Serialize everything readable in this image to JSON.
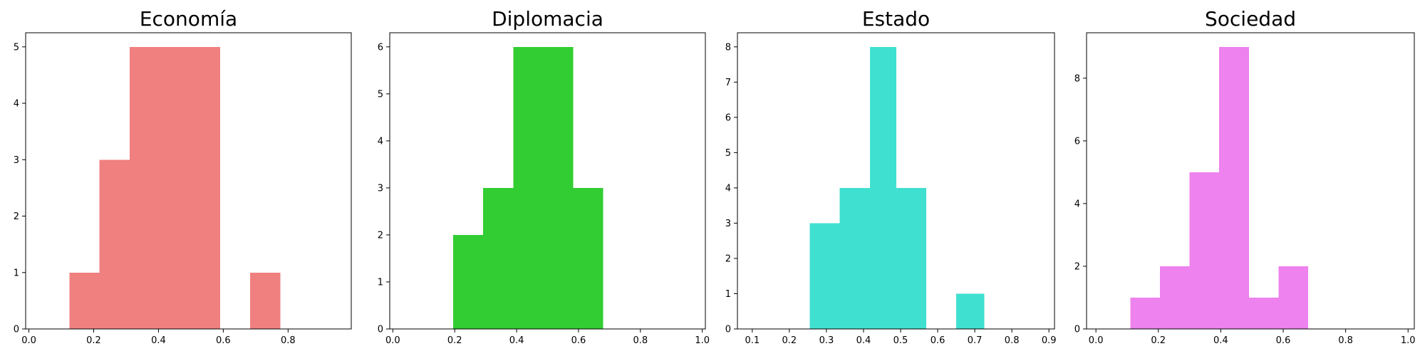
{
  "chart_data": [
    {
      "type": "bar",
      "subtype": "histogram",
      "title": "Economía",
      "color": "#F08080",
      "xlim": [
        -0.01,
        0.995
      ],
      "ylim": [
        0,
        5.25
      ],
      "xticks": [
        0.0,
        0.2,
        0.4,
        0.6,
        0.8
      ],
      "xtick_labels": [
        "0.0",
        "0.2",
        "0.4",
        "0.6",
        "0.8"
      ],
      "yticks": [
        0,
        1,
        2,
        3,
        4,
        5
      ],
      "ytick_labels": [
        "0",
        "1",
        "2",
        "3",
        "4",
        "5"
      ],
      "bins": [
        {
          "x0": 0.125,
          "x1": 0.218,
          "count": 1
        },
        {
          "x0": 0.218,
          "x1": 0.311,
          "count": 3
        },
        {
          "x0": 0.311,
          "x1": 0.404,
          "count": 5
        },
        {
          "x0": 0.404,
          "x1": 0.497,
          "count": 5
        },
        {
          "x0": 0.497,
          "x1": 0.59,
          "count": 5
        },
        {
          "x0": 0.59,
          "x1": 0.683,
          "count": 0
        },
        {
          "x0": 0.683,
          "x1": 0.776,
          "count": 1
        }
      ]
    },
    {
      "type": "bar",
      "subtype": "histogram",
      "title": "Diplomacia",
      "color": "#32CD32",
      "xlim": [
        -0.01,
        1.01
      ],
      "ylim": [
        0,
        6.3
      ],
      "xticks": [
        0.0,
        0.2,
        0.4,
        0.6,
        0.8,
        1.0
      ],
      "xtick_labels": [
        "0.0",
        "0.2",
        "0.4",
        "0.6",
        "0.8",
        "1.0"
      ],
      "yticks": [
        0,
        1,
        2,
        3,
        4,
        5,
        6
      ],
      "ytick_labels": [
        "0",
        "1",
        "2",
        "3",
        "4",
        "5",
        "6"
      ],
      "bins": [
        {
          "x0": 0.195,
          "x1": 0.292,
          "count": 2
        },
        {
          "x0": 0.292,
          "x1": 0.389,
          "count": 3
        },
        {
          "x0": 0.389,
          "x1": 0.486,
          "count": 6
        },
        {
          "x0": 0.486,
          "x1": 0.583,
          "count": 6
        },
        {
          "x0": 0.583,
          "x1": 0.68,
          "count": 3
        }
      ]
    },
    {
      "type": "bar",
      "subtype": "histogram",
      "title": "Estado",
      "color": "#40E0D0",
      "xlim": [
        0.06,
        0.915
      ],
      "ylim": [
        0,
        8.4
      ],
      "xticks": [
        0.1,
        0.2,
        0.3,
        0.4,
        0.5,
        0.6,
        0.7,
        0.8,
        0.9
      ],
      "xtick_labels": [
        "0.1",
        "0.2",
        "0.3",
        "0.4",
        "0.5",
        "0.6",
        "0.7",
        "0.8",
        "0.9"
      ],
      "yticks": [
        0,
        1,
        2,
        3,
        4,
        5,
        6,
        7,
        8
      ],
      "ytick_labels": [
        "0",
        "1",
        "2",
        "3",
        "4",
        "5",
        "6",
        "7",
        "8"
      ],
      "bins": [
        {
          "x0": 0.255,
          "x1": 0.336,
          "count": 3
        },
        {
          "x0": 0.336,
          "x1": 0.417,
          "count": 4
        },
        {
          "x0": 0.417,
          "x1": 0.488,
          "count": 8
        },
        {
          "x0": 0.488,
          "x1": 0.569,
          "count": 4
        },
        {
          "x0": 0.569,
          "x1": 0.65,
          "count": 0
        },
        {
          "x0": 0.65,
          "x1": 0.726,
          "count": 1
        }
      ]
    },
    {
      "type": "bar",
      "subtype": "histogram",
      "title": "Sociedad",
      "color": "#EE82EE",
      "xlim": [
        -0.03,
        1.02
      ],
      "ylim": [
        0,
        9.45
      ],
      "xticks": [
        0.0,
        0.2,
        0.4,
        0.6,
        0.8,
        1.0
      ],
      "xtick_labels": [
        "0.0",
        "0.2",
        "0.4",
        "0.6",
        "0.8",
        "1.0"
      ],
      "yticks": [
        0,
        2,
        4,
        6,
        8
      ],
      "ytick_labels": [
        "0",
        "2",
        "4",
        "6",
        "8"
      ],
      "bins": [
        {
          "x0": 0.11,
          "x1": 0.205,
          "count": 1
        },
        {
          "x0": 0.205,
          "x1": 0.3,
          "count": 2
        },
        {
          "x0": 0.3,
          "x1": 0.395,
          "count": 5
        },
        {
          "x0": 0.395,
          "x1": 0.49,
          "count": 9
        },
        {
          "x0": 0.49,
          "x1": 0.585,
          "count": 1
        },
        {
          "x0": 0.585,
          "x1": 0.68,
          "count": 2
        }
      ]
    }
  ]
}
